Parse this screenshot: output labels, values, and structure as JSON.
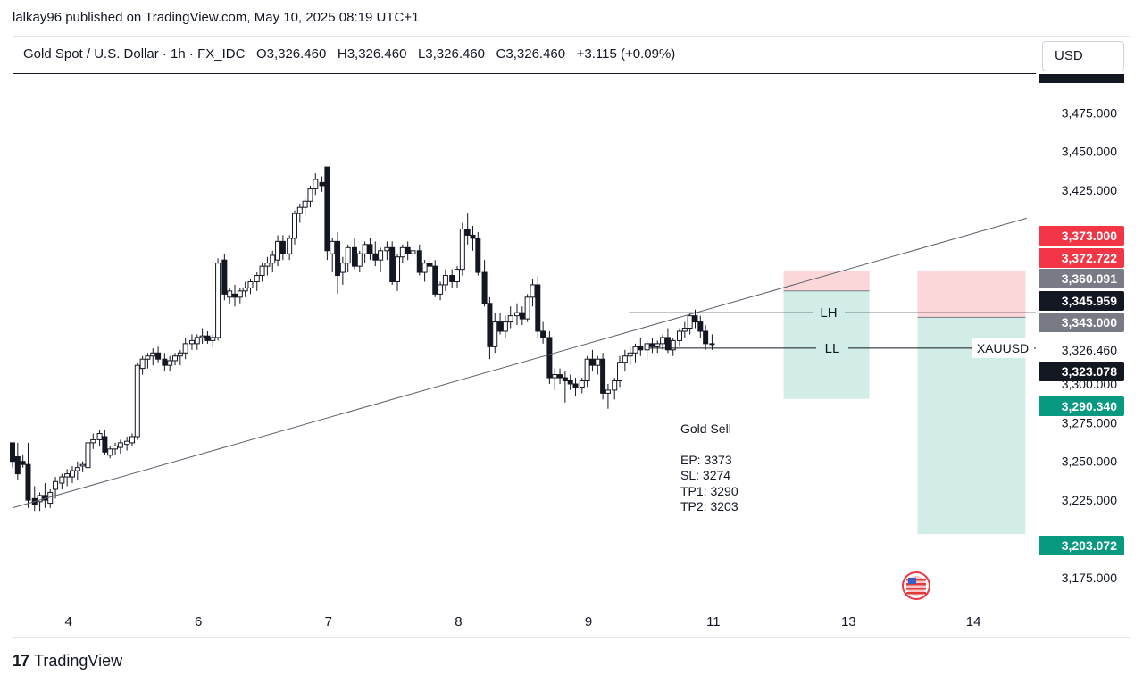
{
  "publisher_line": "lalkay96 published on TradingView.com, May 10, 2025 08:19 UTC+1",
  "legend": {
    "symbol": "Gold Spot / U.S. Dollar · 1h · FX_IDC",
    "open": "O3,326.460",
    "high": "H3,326.460",
    "low": "L3,326.460",
    "close": "C3,326.460",
    "change": "+3.115 (+0.09%)"
  },
  "currency": "USD",
  "footer_brand": "TradingView",
  "note": {
    "title": "Gold Sell",
    "lines": [
      "EP: 3373",
      "SL: 3274",
      "TP1: 3290",
      "TP2: 3203"
    ]
  },
  "chart_data": {
    "type": "candlestick",
    "symbol_label": "XAUUSD",
    "x_ticks": [
      {
        "label": "4",
        "x": 0.43
      },
      {
        "label": "6",
        "x": 1.43
      },
      {
        "label": "7",
        "x": 2.43
      },
      {
        "label": "8",
        "x": 3.43
      },
      {
        "label": "9",
        "x": 4.43
      },
      {
        "label": "11",
        "x": 5.39
      },
      {
        "label": "13",
        "x": 6.43
      },
      {
        "label": "14",
        "x": 7.39
      }
    ],
    "y_ticks": [
      "3,475.000",
      "3,450.000",
      "3,425.000",
      "3,300.000",
      "3,275.000",
      "3,250.000",
      "3,225.000",
      "3,175.000"
    ],
    "y_tick_values": [
      3475,
      3450,
      3425,
      3300,
      3275,
      3250,
      3225,
      3175
    ],
    "ylim": [
      3153,
      3500
    ],
    "xlim": [
      0,
      7.87
    ],
    "price_labels": [
      {
        "text": "3,373.000",
        "value": 3373.0,
        "color": "#f23645"
      },
      {
        "text": "3,372.722",
        "value": 3372.722,
        "color": "#f23645"
      },
      {
        "text": "3,360.091",
        "value": 3360.091,
        "color": "#787b86"
      },
      {
        "text": "3,345.959",
        "value": 3345.959,
        "color": "#131722"
      },
      {
        "text": "3,343.000",
        "value": 3343.0,
        "color": "#787b86"
      },
      {
        "text": "3,326.460",
        "value": 3326.46,
        "color": "#ffffff"
      },
      {
        "text": "3,323.078",
        "value": 3323.078,
        "color": "#131722"
      },
      {
        "text": "3,290.340",
        "value": 3290.34,
        "color": "#089981"
      },
      {
        "text": "3,203.072",
        "value": 3203.072,
        "color": "#089981"
      }
    ],
    "trendline": [
      {
        "x": 0.0,
        "y": 3220
      },
      {
        "x": 7.8,
        "y": 3407
      }
    ],
    "levels": [
      {
        "label": "LH",
        "value": 3345.959,
        "x1": 4.74,
        "x2": 7.87
      },
      {
        "label": "LL",
        "value": 3323.078,
        "x1": 4.9,
        "x2": 7.87
      }
    ],
    "positions": [
      {
        "x1": 5.93,
        "x2": 6.59,
        "entry": 3360.091,
        "stop": 3373.0,
        "target": 3290.34
      },
      {
        "x1": 6.96,
        "x2": 7.79,
        "entry": 3343.0,
        "stop": 3373.0,
        "target": 3203.072
      }
    ],
    "candles": [
      [
        0.0,
        3262,
        3262,
        3246,
        3250
      ],
      [
        0.04,
        3253,
        3262,
        3238,
        3242
      ],
      [
        0.08,
        3250,
        3254,
        3246,
        3248
      ],
      [
        0.12,
        3248,
        3262,
        3220,
        3225
      ],
      [
        0.17,
        3226,
        3234,
        3218,
        3222
      ],
      [
        0.21,
        3224,
        3230,
        3218,
        3228
      ],
      [
        0.25,
        3228,
        3236,
        3220,
        3225
      ],
      [
        0.29,
        3223,
        3232,
        3220,
        3230
      ],
      [
        0.33,
        3232,
        3240,
        3226,
        3237
      ],
      [
        0.38,
        3236,
        3242,
        3232,
        3240
      ],
      [
        0.42,
        3240,
        3245,
        3234,
        3242
      ],
      [
        0.46,
        3240,
        3247,
        3236,
        3244
      ],
      [
        0.5,
        3244,
        3250,
        3238,
        3246
      ],
      [
        0.54,
        3247,
        3250,
        3243,
        3248
      ],
      [
        0.58,
        3246,
        3264,
        3244,
        3262
      ],
      [
        0.62,
        3262,
        3268,
        3258,
        3264
      ],
      [
        0.67,
        3264,
        3270,
        3260,
        3268
      ],
      [
        0.71,
        3266,
        3270,
        3254,
        3256
      ],
      [
        0.75,
        3254,
        3260,
        3252,
        3258
      ],
      [
        0.79,
        3258,
        3262,
        3254,
        3260
      ],
      [
        0.83,
        3259,
        3264,
        3255,
        3262
      ],
      [
        0.88,
        3261,
        3266,
        3257,
        3263
      ],
      [
        0.92,
        3262,
        3268,
        3260,
        3266
      ],
      [
        0.96,
        3266,
        3314,
        3264,
        3312
      ],
      [
        1.0,
        3310,
        3318,
        3306,
        3316
      ],
      [
        1.04,
        3316,
        3320,
        3310,
        3318
      ],
      [
        1.08,
        3318,
        3323,
        3312,
        3320
      ],
      [
        1.12,
        3320,
        3324,
        3314,
        3316
      ],
      [
        1.17,
        3316,
        3320,
        3308,
        3312
      ],
      [
        1.21,
        3312,
        3318,
        3308,
        3315
      ],
      [
        1.25,
        3315,
        3320,
        3312,
        3318
      ],
      [
        1.29,
        3318,
        3322,
        3312,
        3320
      ],
      [
        1.33,
        3320,
        3330,
        3316,
        3326
      ],
      [
        1.38,
        3326,
        3332,
        3322,
        3328
      ],
      [
        1.42,
        3326,
        3332,
        3322,
        3330
      ],
      [
        1.46,
        3330,
        3336,
        3326,
        3331
      ],
      [
        1.5,
        3331,
        3334,
        3326,
        3328
      ],
      [
        1.54,
        3328,
        3332,
        3324,
        3330
      ],
      [
        1.58,
        3330,
        3381,
        3328,
        3378
      ],
      [
        1.63,
        3380,
        3384,
        3354,
        3358
      ],
      [
        1.67,
        3356,
        3362,
        3352,
        3360
      ],
      [
        1.71,
        3358,
        3364,
        3350,
        3356
      ],
      [
        1.75,
        3356,
        3362,
        3352,
        3360
      ],
      [
        1.79,
        3360,
        3366,
        3356,
        3362
      ],
      [
        1.83,
        3362,
        3368,
        3358,
        3366
      ],
      [
        1.88,
        3366,
        3372,
        3360,
        3370
      ],
      [
        1.92,
        3370,
        3378,
        3366,
        3376
      ],
      [
        1.96,
        3376,
        3382,
        3370,
        3378
      ],
      [
        2.0,
        3378,
        3386,
        3372,
        3383
      ],
      [
        2.04,
        3380,
        3396,
        3376,
        3392
      ],
      [
        2.08,
        3392,
        3396,
        3380,
        3384
      ],
      [
        2.13,
        3384,
        3396,
        3380,
        3394
      ],
      [
        2.17,
        3394,
        3412,
        3390,
        3410
      ],
      [
        2.21,
        3410,
        3416,
        3404,
        3414
      ],
      [
        2.25,
        3414,
        3420,
        3408,
        3418
      ],
      [
        2.29,
        3418,
        3428,
        3414,
        3426
      ],
      [
        2.33,
        3426,
        3436,
        3422,
        3432
      ],
      [
        2.38,
        3430,
        3434,
        3424,
        3428
      ],
      [
        2.42,
        3440,
        3440,
        3380,
        3386
      ],
      [
        2.46,
        3384,
        3394,
        3372,
        3392
      ],
      [
        2.5,
        3392,
        3398,
        3358,
        3370
      ],
      [
        2.54,
        3372,
        3382,
        3364,
        3378
      ],
      [
        2.58,
        3378,
        3390,
        3372,
        3388
      ],
      [
        2.63,
        3388,
        3394,
        3374,
        3376
      ],
      [
        2.67,
        3376,
        3386,
        3372,
        3384
      ],
      [
        2.71,
        3384,
        3392,
        3378,
        3390
      ],
      [
        2.75,
        3390,
        3394,
        3380,
        3384
      ],
      [
        2.79,
        3384,
        3392,
        3376,
        3380
      ],
      [
        2.83,
        3380,
        3388,
        3372,
        3386
      ],
      [
        2.88,
        3386,
        3392,
        3380,
        3388
      ],
      [
        2.92,
        3388,
        3392,
        3364,
        3366
      ],
      [
        2.96,
        3366,
        3384,
        3360,
        3382
      ],
      [
        3.0,
        3382,
        3390,
        3378,
        3388
      ],
      [
        3.04,
        3388,
        3392,
        3380,
        3384
      ],
      [
        3.08,
        3384,
        3390,
        3376,
        3386
      ],
      [
        3.13,
        3386,
        3390,
        3370,
        3372
      ],
      [
        3.17,
        3372,
        3380,
        3366,
        3378
      ],
      [
        3.21,
        3378,
        3382,
        3372,
        3376
      ],
      [
        3.25,
        3376,
        3380,
        3356,
        3358
      ],
      [
        3.29,
        3358,
        3366,
        3354,
        3364
      ],
      [
        3.33,
        3364,
        3374,
        3360,
        3370
      ],
      [
        3.38,
        3370,
        3374,
        3362,
        3366
      ],
      [
        3.42,
        3366,
        3376,
        3362,
        3374
      ],
      [
        3.46,
        3374,
        3404,
        3370,
        3400
      ],
      [
        3.5,
        3400,
        3410,
        3390,
        3396
      ],
      [
        3.54,
        3396,
        3402,
        3386,
        3394
      ],
      [
        3.58,
        3394,
        3398,
        3370,
        3372
      ],
      [
        3.63,
        3372,
        3380,
        3350,
        3352
      ],
      [
        3.67,
        3352,
        3356,
        3316,
        3324
      ],
      [
        3.71,
        3324,
        3346,
        3320,
        3340
      ],
      [
        3.75,
        3340,
        3346,
        3332,
        3334
      ],
      [
        3.79,
        3334,
        3344,
        3330,
        3340
      ],
      [
        3.83,
        3340,
        3350,
        3336,
        3344
      ],
      [
        3.88,
        3344,
        3352,
        3338,
        3346
      ],
      [
        3.92,
        3346,
        3350,
        3338,
        3342
      ],
      [
        3.96,
        3342,
        3358,
        3340,
        3356
      ],
      [
        4.0,
        3356,
        3368,
        3350,
        3364
      ],
      [
        4.04,
        3364,
        3370,
        3330,
        3334
      ],
      [
        4.08,
        3334,
        3340,
        3326,
        3330
      ],
      [
        4.13,
        3330,
        3334,
        3300,
        3304
      ],
      [
        4.17,
        3304,
        3310,
        3296,
        3306
      ],
      [
        4.21,
        3306,
        3310,
        3300,
        3304
      ],
      [
        4.25,
        3304,
        3308,
        3288,
        3302
      ],
      [
        4.29,
        3302,
        3306,
        3296,
        3300
      ],
      [
        4.33,
        3300,
        3304,
        3292,
        3298
      ],
      [
        4.38,
        3298,
        3304,
        3294,
        3302
      ],
      [
        4.42,
        3302,
        3318,
        3298,
        3316
      ],
      [
        4.46,
        3316,
        3322,
        3308,
        3312
      ],
      [
        4.5,
        3312,
        3318,
        3306,
        3316
      ],
      [
        4.54,
        3316,
        3320,
        3290,
        3294
      ],
      [
        4.58,
        3294,
        3300,
        3284,
        3296
      ],
      [
        4.63,
        3296,
        3304,
        3290,
        3302
      ],
      [
        4.67,
        3302,
        3318,
        3298,
        3314
      ],
      [
        4.71,
        3314,
        3322,
        3308,
        3318
      ],
      [
        4.75,
        3318,
        3324,
        3312,
        3320
      ],
      [
        4.79,
        3320,
        3326,
        3314,
        3324
      ],
      [
        4.83,
        3324,
        3330,
        3318,
        3322
      ],
      [
        4.88,
        3322,
        3328,
        3316,
        3326
      ],
      [
        4.92,
        3326,
        3330,
        3320,
        3324
      ],
      [
        4.96,
        3324,
        3328,
        3320,
        3326
      ],
      [
        5.0,
        3326,
        3332,
        3322,
        3330
      ],
      [
        5.04,
        3330,
        3336,
        3320,
        3322
      ],
      [
        5.08,
        3322,
        3330,
        3318,
        3328
      ],
      [
        5.13,
        3328,
        3336,
        3324,
        3334
      ],
      [
        5.17,
        3334,
        3340,
        3330,
        3336
      ],
      [
        5.21,
        3336,
        3346,
        3332,
        3344
      ],
      [
        5.25,
        3344,
        3348,
        3336,
        3340
      ],
      [
        5.29,
        3340,
        3344,
        3330,
        3334
      ],
      [
        5.33,
        3334,
        3338,
        3322,
        3326
      ],
      [
        5.38,
        3326,
        3332,
        3322,
        3326
      ]
    ]
  }
}
